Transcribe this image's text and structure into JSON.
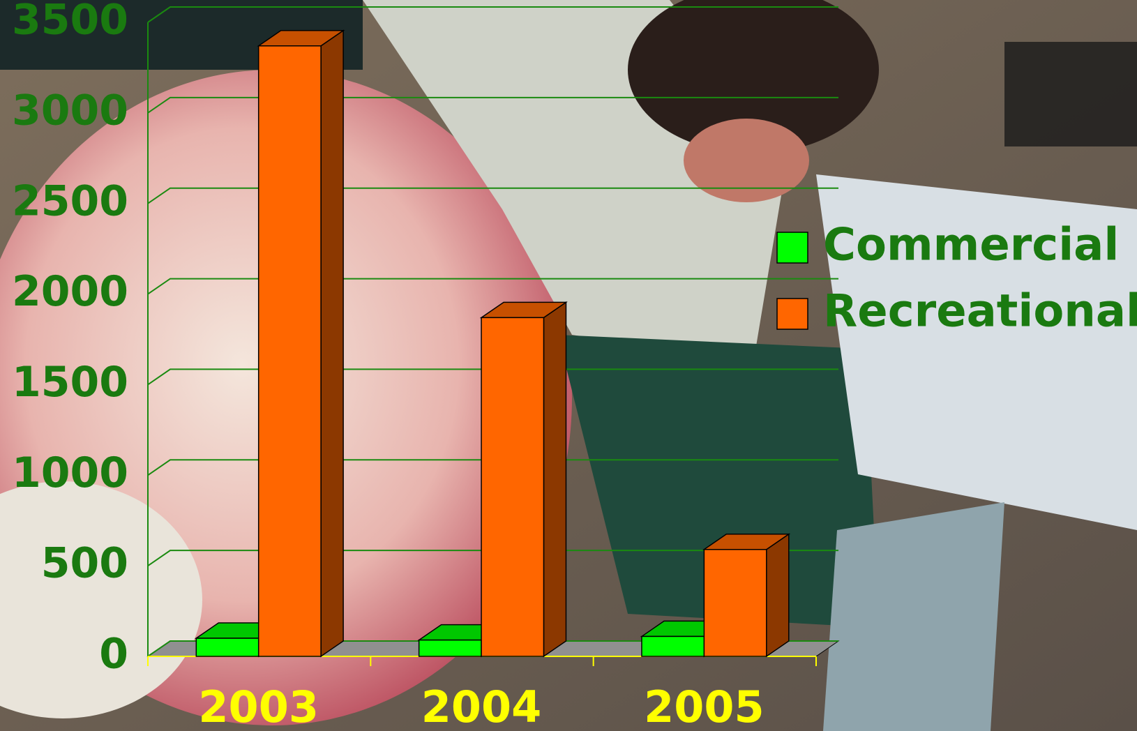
{
  "chart_data": {
    "type": "bar3d",
    "categories": [
      "2003",
      "2004",
      "2005"
    ],
    "series": [
      {
        "name": "Commercial",
        "color": "#00ff00",
        "values": [
          100,
          90,
          110
        ]
      },
      {
        "name": "Recreational",
        "color": "#ff6600",
        "values": [
          3370,
          1870,
          590
        ]
      }
    ],
    "ylim": [
      0,
      3500
    ],
    "yticks": [
      0,
      500,
      1000,
      1500,
      2000,
      2500,
      3000,
      3500
    ],
    "grid": true,
    "legend": "right"
  }
}
